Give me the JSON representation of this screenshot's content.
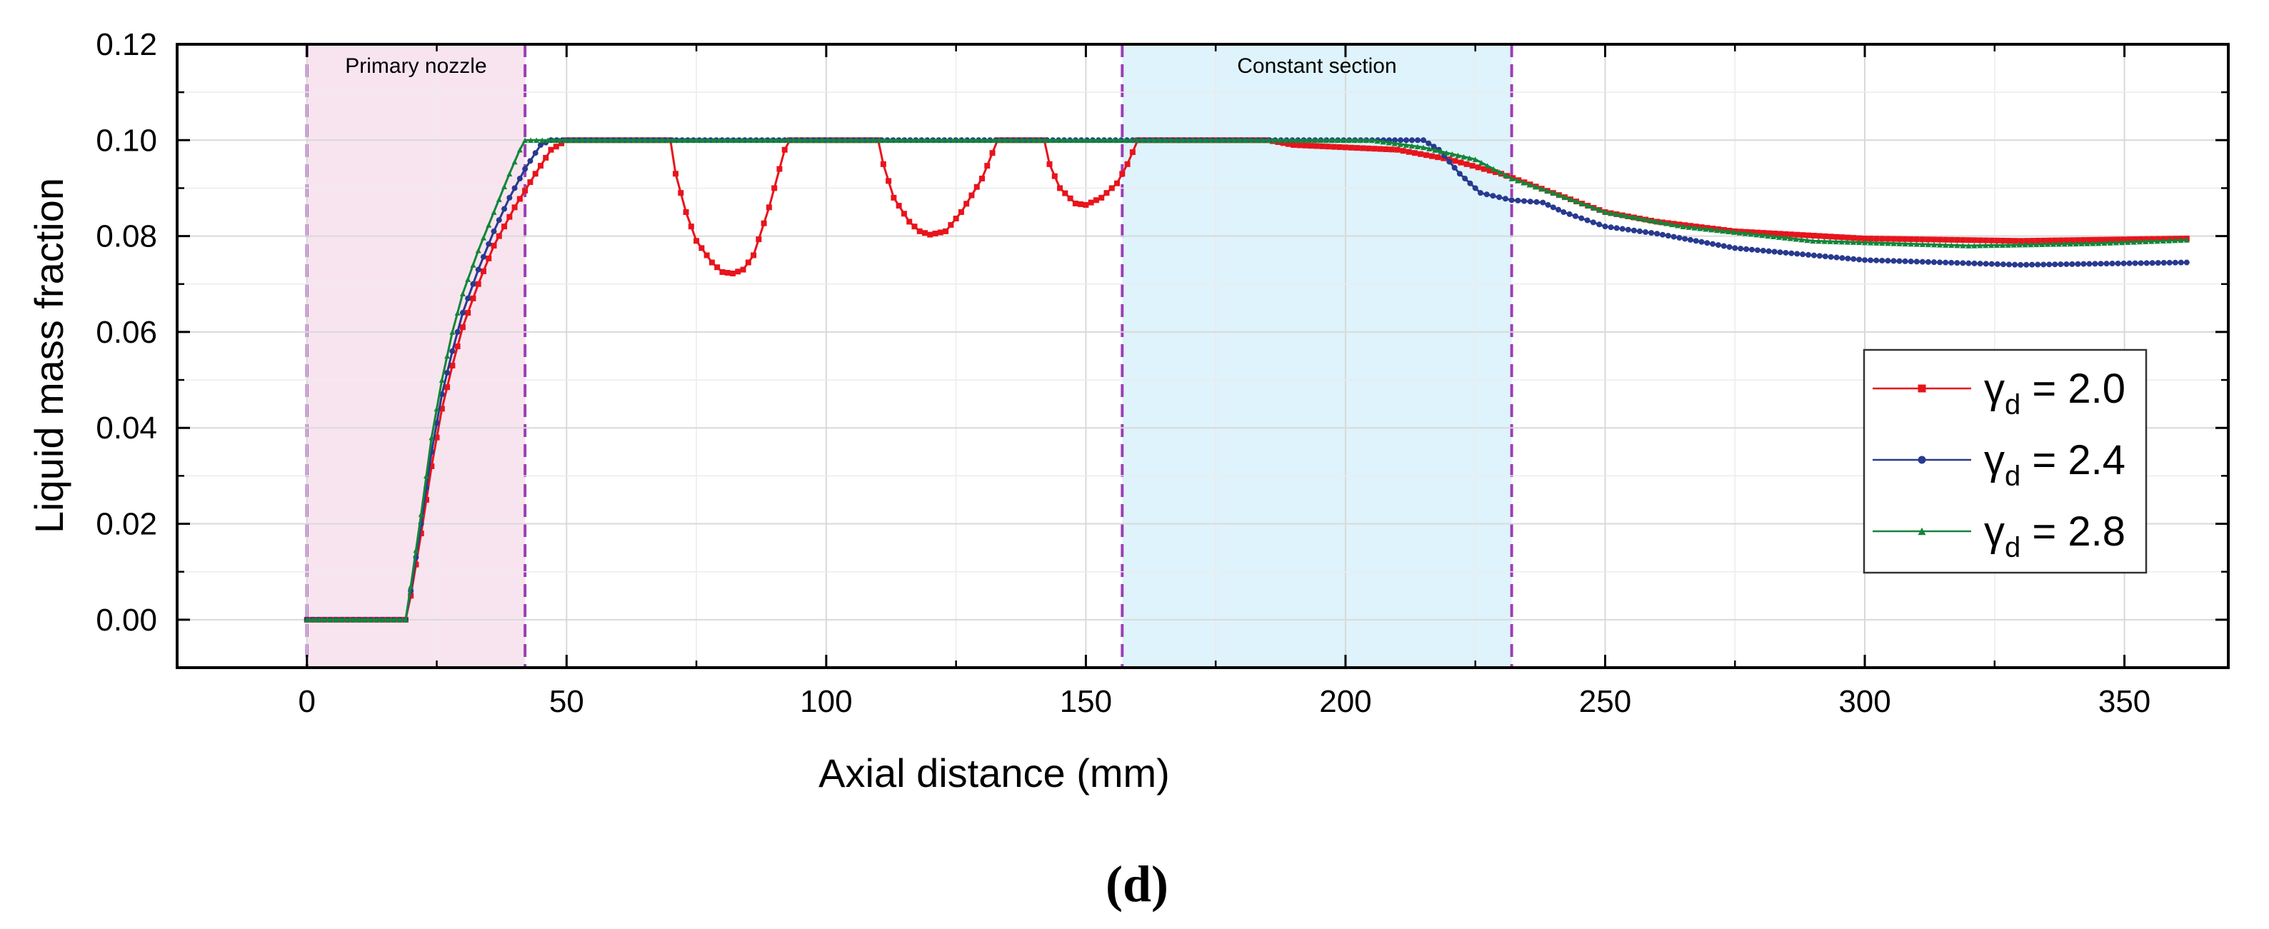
{
  "chart_data": {
    "type": "line",
    "title": "",
    "xlabel": "Axial distance (mm)",
    "ylabel": "Liquid mass fraction",
    "xlim": [
      -25,
      370
    ],
    "ylim": [
      -0.01,
      0.12
    ],
    "xticks": [
      0,
      50,
      100,
      150,
      200,
      250,
      300,
      350
    ],
    "xtick_labels": [
      "0",
      "50",
      "100",
      "150",
      "200",
      "250",
      "300",
      "350"
    ],
    "yticks": [
      0.0,
      0.02,
      0.04,
      0.06,
      0.08,
      0.1,
      0.12
    ],
    "ytick_labels": [
      "0.00",
      "0.02",
      "0.04",
      "0.06",
      "0.08",
      "0.10",
      "0.12"
    ],
    "grid": true,
    "legend_position": "right",
    "panel_label": "(d)",
    "regions": [
      {
        "name": "Primary nozzle",
        "x_start": 0,
        "x_end": 42,
        "color": "#f8e4ef"
      },
      {
        "name": "Constant section",
        "x_start": 157,
        "x_end": 232,
        "color": "#def3fb"
      }
    ],
    "series": [
      {
        "name": "γd = 2.0",
        "symbol": "γ",
        "subscript": "d",
        "value_text": " = 2.0",
        "color": "#e8141c",
        "marker": "square",
        "points": [
          [
            0,
            0
          ],
          [
            19,
            0
          ],
          [
            20,
            0.005
          ],
          [
            22,
            0.018
          ],
          [
            24,
            0.032
          ],
          [
            26,
            0.044
          ],
          [
            28,
            0.053
          ],
          [
            30,
            0.061
          ],
          [
            33,
            0.07
          ],
          [
            36,
            0.078
          ],
          [
            40,
            0.086
          ],
          [
            44,
            0.093
          ],
          [
            47,
            0.098
          ],
          [
            50,
            0.1
          ],
          [
            70,
            0.1
          ],
          [
            71,
            0.093
          ],
          [
            73,
            0.085
          ],
          [
            75,
            0.079
          ],
          [
            78,
            0.0745
          ],
          [
            80,
            0.0725
          ],
          [
            82,
            0.0722
          ],
          [
            84,
            0.073
          ],
          [
            86,
            0.076
          ],
          [
            89,
            0.086
          ],
          [
            92,
            0.098
          ],
          [
            93,
            0.1
          ],
          [
            110,
            0.1
          ],
          [
            111,
            0.095
          ],
          [
            113,
            0.088
          ],
          [
            116,
            0.083
          ],
          [
            118,
            0.081
          ],
          [
            120,
            0.0803
          ],
          [
            123,
            0.081
          ],
          [
            126,
            0.085
          ],
          [
            130,
            0.092
          ],
          [
            133,
            0.1
          ],
          [
            142,
            0.1
          ],
          [
            143,
            0.095
          ],
          [
            145,
            0.09
          ],
          [
            148,
            0.0868
          ],
          [
            150,
            0.0865
          ],
          [
            153,
            0.088
          ],
          [
            156,
            0.091
          ],
          [
            158,
            0.095
          ],
          [
            160,
            0.1
          ],
          [
            185,
            0.1
          ],
          [
            190,
            0.099
          ],
          [
            200,
            0.0985
          ],
          [
            210,
            0.098
          ],
          [
            220,
            0.096
          ],
          [
            230,
            0.093
          ],
          [
            240,
            0.089
          ],
          [
            250,
            0.085
          ],
          [
            260,
            0.083
          ],
          [
            275,
            0.081
          ],
          [
            300,
            0.0795
          ],
          [
            330,
            0.079
          ],
          [
            362,
            0.0795
          ]
        ]
      },
      {
        "name": "γd = 2.4",
        "symbol": "γ",
        "subscript": "d",
        "value_text": " = 2.4",
        "color": "#283a8f",
        "marker": "circle",
        "points": [
          [
            0,
            0
          ],
          [
            19,
            0
          ],
          [
            20,
            0.006
          ],
          [
            22,
            0.02
          ],
          [
            24,
            0.035
          ],
          [
            26,
            0.047
          ],
          [
            28,
            0.056
          ],
          [
            30,
            0.064
          ],
          [
            33,
            0.073
          ],
          [
            36,
            0.081
          ],
          [
            39,
            0.088
          ],
          [
            42,
            0.094
          ],
          [
            45,
            0.099
          ],
          [
            47,
            0.1
          ],
          [
            215,
            0.1
          ],
          [
            218,
            0.098
          ],
          [
            222,
            0.093
          ],
          [
            226,
            0.089
          ],
          [
            232,
            0.0875
          ],
          [
            238,
            0.087
          ],
          [
            242,
            0.085
          ],
          [
            250,
            0.082
          ],
          [
            260,
            0.0805
          ],
          [
            275,
            0.0775
          ],
          [
            300,
            0.075
          ],
          [
            330,
            0.074
          ],
          [
            362,
            0.0745
          ]
        ]
      },
      {
        "name": "γd = 2.8",
        "symbol": "γ",
        "subscript": "d",
        "value_text": " = 2.8",
        "color": "#14853a",
        "marker": "triangle",
        "points": [
          [
            0,
            0
          ],
          [
            19,
            0
          ],
          [
            20,
            0.007
          ],
          [
            22,
            0.022
          ],
          [
            24,
            0.038
          ],
          [
            26,
            0.05
          ],
          [
            28,
            0.06
          ],
          [
            30,
            0.068
          ],
          [
            33,
            0.077
          ],
          [
            36,
            0.085
          ],
          [
            39,
            0.093
          ],
          [
            41,
            0.098
          ],
          [
            42,
            0.1
          ],
          [
            205,
            0.1
          ],
          [
            215,
            0.0985
          ],
          [
            225,
            0.096
          ],
          [
            232,
            0.092
          ],
          [
            240,
            0.089
          ],
          [
            250,
            0.085
          ],
          [
            265,
            0.082
          ],
          [
            290,
            0.079
          ],
          [
            320,
            0.078
          ],
          [
            345,
            0.0785
          ],
          [
            362,
            0.0792
          ]
        ]
      }
    ]
  }
}
